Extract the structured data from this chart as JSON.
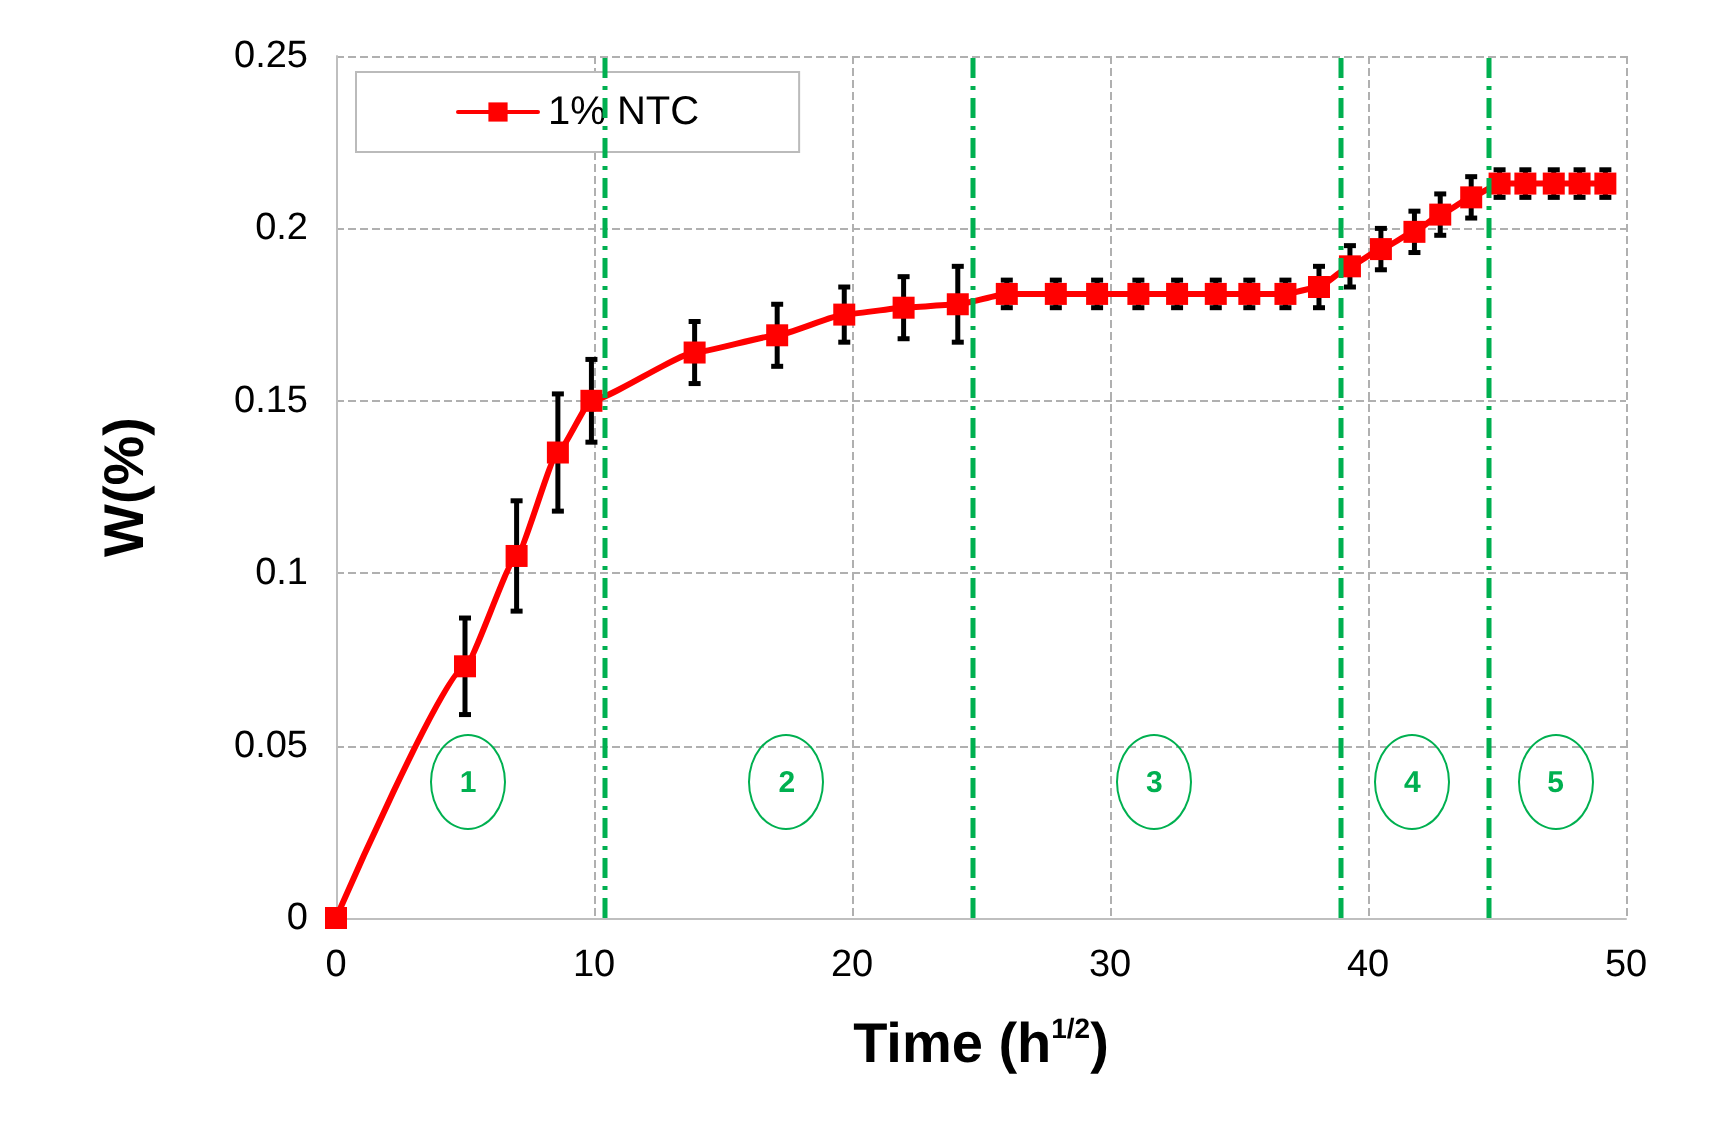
{
  "chart_data": {
    "type": "line",
    "xlabel": "Time (h$^{1/2}$)",
    "ylabel": "W(%)",
    "xlim": [
      0,
      50
    ],
    "xticks": [
      0,
      10,
      20,
      30,
      40,
      50
    ],
    "ylim": [
      0,
      0.25
    ],
    "yticks": [
      0,
      0.05,
      0.1,
      0.15,
      0.2,
      0.25
    ],
    "grid": true,
    "legend": "top left",
    "marker": "square",
    "line_style": "solid",
    "series": [
      {
        "name": "1% NTC",
        "color": "#ff0000",
        "x": [
          0,
          5.0,
          7.0,
          8.6,
          9.9,
          13.9,
          17.1,
          19.7,
          22.0,
          24.1,
          26.0,
          27.9,
          29.5,
          31.1,
          32.6,
          34.1,
          35.4,
          36.8,
          38.1,
          39.3,
          40.5,
          41.8,
          42.8,
          44.0,
          45.1,
          46.1,
          47.2,
          48.2,
          49.2
        ],
        "values": [
          0,
          0.073,
          0.105,
          0.135,
          0.15,
          0.164,
          0.169,
          0.175,
          0.177,
          0.178,
          0.181,
          0.181,
          0.181,
          0.181,
          0.181,
          0.181,
          0.181,
          0.181,
          0.183,
          0.189,
          0.194,
          0.199,
          0.204,
          0.209,
          0.213,
          0.213,
          0.213,
          0.213,
          0.213
        ],
        "errors": [
          null,
          0.014,
          0.016,
          0.017,
          0.012,
          0.009,
          0.009,
          0.008,
          0.009,
          0.011,
          0.004,
          0.004,
          0.004,
          0.004,
          0.004,
          0.004,
          0.004,
          0.004,
          0.006,
          0.006,
          0.006,
          0.006,
          0.006,
          0.006,
          0.004,
          0.004,
          0.004,
          0.004,
          0.004
        ]
      }
    ],
    "ref_lines": [
      {
        "axis": "x",
        "value": 10.4,
        "color": "#00b050",
        "line_style": "dashed"
      },
      {
        "axis": "x",
        "value": 24.7,
        "color": "#00b050",
        "line_style": "dashed"
      },
      {
        "axis": "x",
        "value": 38.9,
        "color": "#00b050",
        "line_style": "dashed"
      },
      {
        "axis": "x",
        "value": 44.7,
        "color": "#00b050",
        "line_style": "dashed"
      }
    ],
    "annotations": [
      "1",
      "2",
      "3",
      "4",
      "5"
    ]
  }
}
